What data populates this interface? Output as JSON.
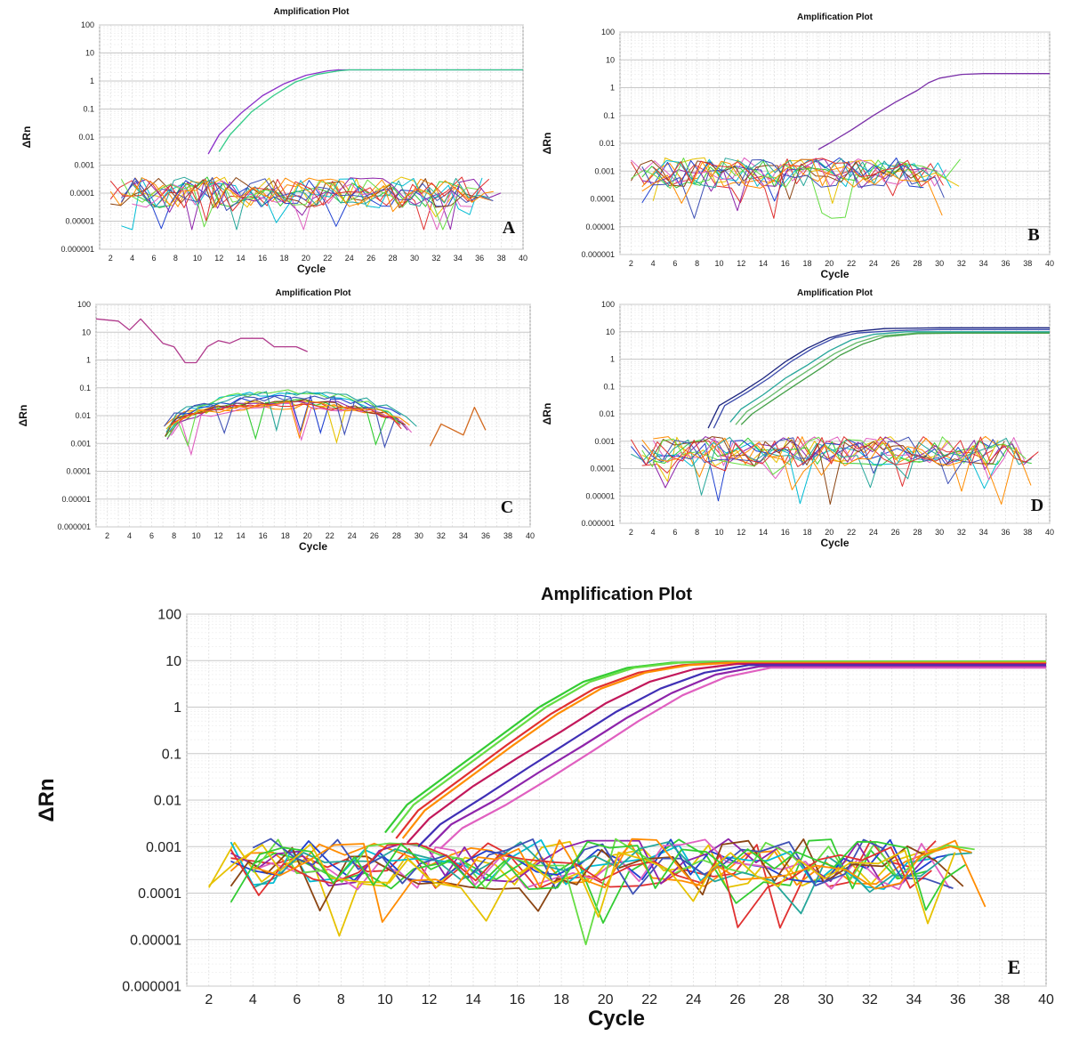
{
  "chart_data": [
    {
      "panel_label": "A",
      "type": "line",
      "title": "Amplification Plot",
      "xlabel": "Cycle",
      "ylabel": "ΔRn",
      "yscale": "log",
      "xlim": [
        1,
        40
      ],
      "ylim": [
        1e-06,
        100
      ],
      "xticks": [
        "2",
        "4",
        "6",
        "8",
        "10",
        "12",
        "14",
        "16",
        "18",
        "20",
        "22",
        "24",
        "26",
        "28",
        "30",
        "32",
        "34",
        "36",
        "38",
        "40"
      ],
      "yticks": [
        "100",
        "10",
        "1",
        "0.1",
        "0.01",
        "0.001",
        "0.0001",
        "0.00001",
        "0.000001"
      ],
      "grid": true,
      "amplification_curves": [
        {
          "color": "#8b2fc9",
          "x": [
            11,
            12,
            14,
            16,
            18,
            20,
            22,
            23,
            26,
            30,
            35,
            40
          ],
          "y": [
            0.0025,
            0.012,
            0.07,
            0.3,
            0.8,
            1.6,
            2.3,
            2.5,
            2.5,
            2.5,
            2.5,
            2.5
          ]
        },
        {
          "color": "#33cc88",
          "x": [
            12,
            13,
            15,
            17,
            19,
            21,
            23,
            24,
            28,
            32,
            36,
            40
          ],
          "y": [
            0.003,
            0.012,
            0.08,
            0.3,
            0.9,
            1.7,
            2.3,
            2.5,
            2.5,
            2.5,
            2.5,
            2.5
          ]
        }
      ],
      "noise_band": {
        "x_range": [
          2,
          38
        ],
        "y_range": [
          5e-06,
          0.0015
        ],
        "traces": 14
      }
    },
    {
      "panel_label": "B",
      "type": "line",
      "title": "Amplification Plot",
      "xlabel": "Cycle",
      "ylabel": "ΔRn",
      "yscale": "log",
      "xlim": [
        1,
        40
      ],
      "ylim": [
        1e-06,
        100
      ],
      "xticks": [
        "2",
        "4",
        "6",
        "8",
        "10",
        "12",
        "14",
        "16",
        "18",
        "20",
        "22",
        "24",
        "26",
        "28",
        "30",
        "32",
        "34",
        "36",
        "38",
        "40"
      ],
      "yticks": [
        "100",
        "10",
        "1",
        "0.1",
        "0.01",
        "0.001",
        "0.0001",
        "0.00001",
        "0.000001"
      ],
      "grid": true,
      "amplification_curves": [
        {
          "color": "#7a2fa8",
          "x": [
            19,
            20,
            22,
            24,
            26,
            28,
            29,
            30,
            32,
            34,
            36,
            40
          ],
          "y": [
            0.006,
            0.01,
            0.03,
            0.1,
            0.3,
            0.8,
            1.5,
            2.2,
            3.0,
            3.2,
            3.2,
            3.2
          ]
        }
      ],
      "noise_band": {
        "x_range": [
          2,
          32
        ],
        "y_range": [
          2e-05,
          0.012
        ],
        "traces": 14
      }
    },
    {
      "panel_label": "C",
      "type": "line",
      "title": "Amplification Plot",
      "xlabel": "Cycle",
      "ylabel": "ΔRn",
      "yscale": "log",
      "xlim": [
        1,
        40
      ],
      "ylim": [
        1e-06,
        100
      ],
      "xticks": [
        "2",
        "4",
        "6",
        "8",
        "10",
        "12",
        "14",
        "16",
        "18",
        "20",
        "22",
        "24",
        "26",
        "28",
        "30",
        "32",
        "34",
        "36",
        "38",
        "40"
      ],
      "yticks": [
        "100",
        "10",
        "1",
        "0.1",
        "0.01",
        "0.001",
        "0.0001",
        "0.00001",
        "0.000001"
      ],
      "grid": true,
      "high_trace": {
        "color": "#b03a8c",
        "x": [
          1,
          3,
          4,
          5,
          7,
          8,
          9,
          10,
          11,
          12,
          13,
          14,
          16,
          17,
          19,
          20
        ],
        "y": [
          30,
          25,
          12,
          30,
          4,
          3,
          0.8,
          0.8,
          3,
          5,
          4,
          6,
          6,
          3,
          3,
          2
        ]
      },
      "hump_curves": {
        "x_range": [
          7,
          30
        ],
        "peak": 0.07,
        "edge": 0.005,
        "traces": 14
      },
      "outlier_trace": {
        "color": "#d2691e",
        "x": [
          31,
          32,
          34,
          35,
          36
        ],
        "y": [
          0.0008,
          0.005,
          0.002,
          0.02,
          0.003
        ]
      }
    },
    {
      "panel_label": "D",
      "type": "line",
      "title": "Amplification Plot",
      "xlabel": "Cycle",
      "ylabel": "ΔRn",
      "yscale": "log",
      "xlim": [
        1,
        40
      ],
      "ylim": [
        1e-06,
        100
      ],
      "xticks": [
        "2",
        "4",
        "6",
        "8",
        "10",
        "12",
        "14",
        "16",
        "18",
        "20",
        "22",
        "24",
        "26",
        "28",
        "30",
        "32",
        "34",
        "36",
        "38",
        "40"
      ],
      "yticks": [
        "100",
        "10",
        "1",
        "0.1",
        "0.01",
        "0.001",
        "0.0001",
        "0.00001",
        "0.000001"
      ],
      "grid": true,
      "amplification_curves": [
        {
          "color": "#1a237e",
          "x": [
            9,
            10,
            12,
            14,
            16,
            18,
            20,
            22,
            25,
            30,
            40
          ],
          "y": [
            0.003,
            0.02,
            0.06,
            0.2,
            0.8,
            2.5,
            6,
            10,
            13,
            14,
            14
          ]
        },
        {
          "color": "#3949ab",
          "x": [
            9.5,
            10.5,
            12.5,
            14.5,
            16.5,
            18.5,
            20.5,
            22.5,
            26,
            30,
            40
          ],
          "y": [
            0.003,
            0.02,
            0.06,
            0.2,
            0.8,
            2.5,
            6,
            9,
            11,
            12,
            12
          ]
        },
        {
          "color": "#26a69a",
          "x": [
            11,
            12,
            14,
            16,
            18,
            20,
            22,
            24,
            27,
            30,
            40
          ],
          "y": [
            0.005,
            0.015,
            0.05,
            0.2,
            0.6,
            2,
            5,
            8,
            10,
            10,
            10
          ]
        },
        {
          "color": "#66bb6a",
          "x": [
            11.5,
            12.5,
            14.5,
            16.5,
            18.5,
            20.5,
            22.5,
            24.5,
            28,
            31,
            40
          ],
          "y": [
            0.004,
            0.012,
            0.04,
            0.15,
            0.5,
            1.6,
            4,
            7,
            9,
            9,
            9
          ]
        },
        {
          "color": "#43a047",
          "x": [
            12,
            13,
            15,
            17,
            19,
            21,
            23,
            25,
            28,
            32,
            40
          ],
          "y": [
            0.004,
            0.01,
            0.035,
            0.12,
            0.4,
            1.4,
            3.5,
            6.5,
            8.5,
            9,
            9
          ]
        }
      ],
      "noise_band": {
        "x_range": [
          2,
          39
        ],
        "y_range": [
          5e-06,
          0.006
        ],
        "traces": 14
      }
    },
    {
      "panel_label": "E",
      "type": "line",
      "title": "Amplification Plot",
      "xlabel": "Cycle",
      "ylabel": "ΔRn",
      "yscale": "log",
      "xlim": [
        1,
        40
      ],
      "ylim": [
        1e-06,
        100
      ],
      "xticks": [
        "2",
        "4",
        "6",
        "8",
        "10",
        "12",
        "14",
        "16",
        "18",
        "20",
        "22",
        "24",
        "26",
        "28",
        "30",
        "32",
        "34",
        "36",
        "38",
        "40"
      ],
      "yticks": [
        "100",
        "10",
        "1",
        "0.1",
        "0.01",
        "0.001",
        "0.0001",
        "0.00001",
        "0.000001"
      ],
      "grid": true,
      "amplification_curves": [
        {
          "color": "#33cc33",
          "x": [
            10,
            11,
            13,
            15,
            17,
            19,
            21,
            23,
            25,
            28,
            32,
            40
          ],
          "y": [
            0.002,
            0.008,
            0.04,
            0.2,
            1,
            3.5,
            7,
            9,
            9.5,
            9.5,
            9.5,
            9.5
          ]
        },
        {
          "color": "#66dd44",
          "x": [
            10.3,
            11.3,
            13.3,
            15.3,
            17.3,
            19.3,
            21.3,
            23.3,
            25.3,
            28,
            32,
            40
          ],
          "y": [
            0.002,
            0.008,
            0.04,
            0.2,
            1,
            3.5,
            7,
            9,
            9.5,
            9.5,
            9.5,
            9.5
          ]
        },
        {
          "color": "#e03030",
          "x": [
            10.5,
            11.5,
            13.5,
            15.5,
            17.5,
            19.5,
            21.5,
            23.5,
            25.5,
            28,
            32,
            40
          ],
          "y": [
            0.0015,
            0.006,
            0.03,
            0.15,
            0.7,
            2.5,
            5.5,
            8,
            9,
            9,
            9,
            9
          ]
        },
        {
          "color": "#ff8c00",
          "x": [
            10.8,
            11.8,
            13.8,
            15.8,
            17.8,
            19.8,
            21.8,
            23.8,
            25.8,
            28,
            32,
            40
          ],
          "y": [
            0.0015,
            0.006,
            0.03,
            0.15,
            0.7,
            2.5,
            5.5,
            8,
            9,
            9,
            9,
            9
          ]
        },
        {
          "color": "#c2185b",
          "x": [
            11,
            12,
            14,
            16,
            18,
            20,
            22,
            24,
            26,
            28,
            32,
            40
          ],
          "y": [
            0.0012,
            0.004,
            0.02,
            0.08,
            0.3,
            1.2,
            3.5,
            6.5,
            8.5,
            8.5,
            8.5,
            8.5
          ]
        },
        {
          "color": "#3f2fb5",
          "x": [
            11.5,
            12.5,
            14.5,
            16.5,
            18.5,
            20.5,
            22.5,
            24.5,
            26.5,
            29,
            32,
            40
          ],
          "y": [
            0.001,
            0.003,
            0.012,
            0.05,
            0.2,
            0.8,
            2.5,
            5.5,
            8,
            8,
            8,
            8
          ]
        },
        {
          "color": "#8e24aa",
          "x": [
            12,
            13,
            15,
            17,
            19,
            21,
            23,
            25,
            27,
            30,
            33,
            40
          ],
          "y": [
            0.001,
            0.003,
            0.01,
            0.04,
            0.15,
            0.6,
            2,
            5,
            7.5,
            7.5,
            7.5,
            7.5
          ]
        },
        {
          "color": "#e060c0",
          "x": [
            12.5,
            13.5,
            15.5,
            17.5,
            19.5,
            21.5,
            23.5,
            25.5,
            27.5,
            30,
            34,
            40
          ],
          "y": [
            0.0009,
            0.0025,
            0.008,
            0.03,
            0.12,
            0.5,
            1.8,
            4.5,
            7,
            7,
            7,
            7
          ]
        }
      ],
      "noise_band": {
        "x_range": [
          2,
          38
        ],
        "y_range": [
          5e-06,
          0.006
        ],
        "traces": 16
      }
    }
  ],
  "palette": [
    "#e03030",
    "#ff8c00",
    "#e6c200",
    "#33cc33",
    "#00bcd4",
    "#1e3fd0",
    "#8e24aa",
    "#e060c0",
    "#8b4513",
    "#66dd44",
    "#26a69a",
    "#3f51b5"
  ]
}
